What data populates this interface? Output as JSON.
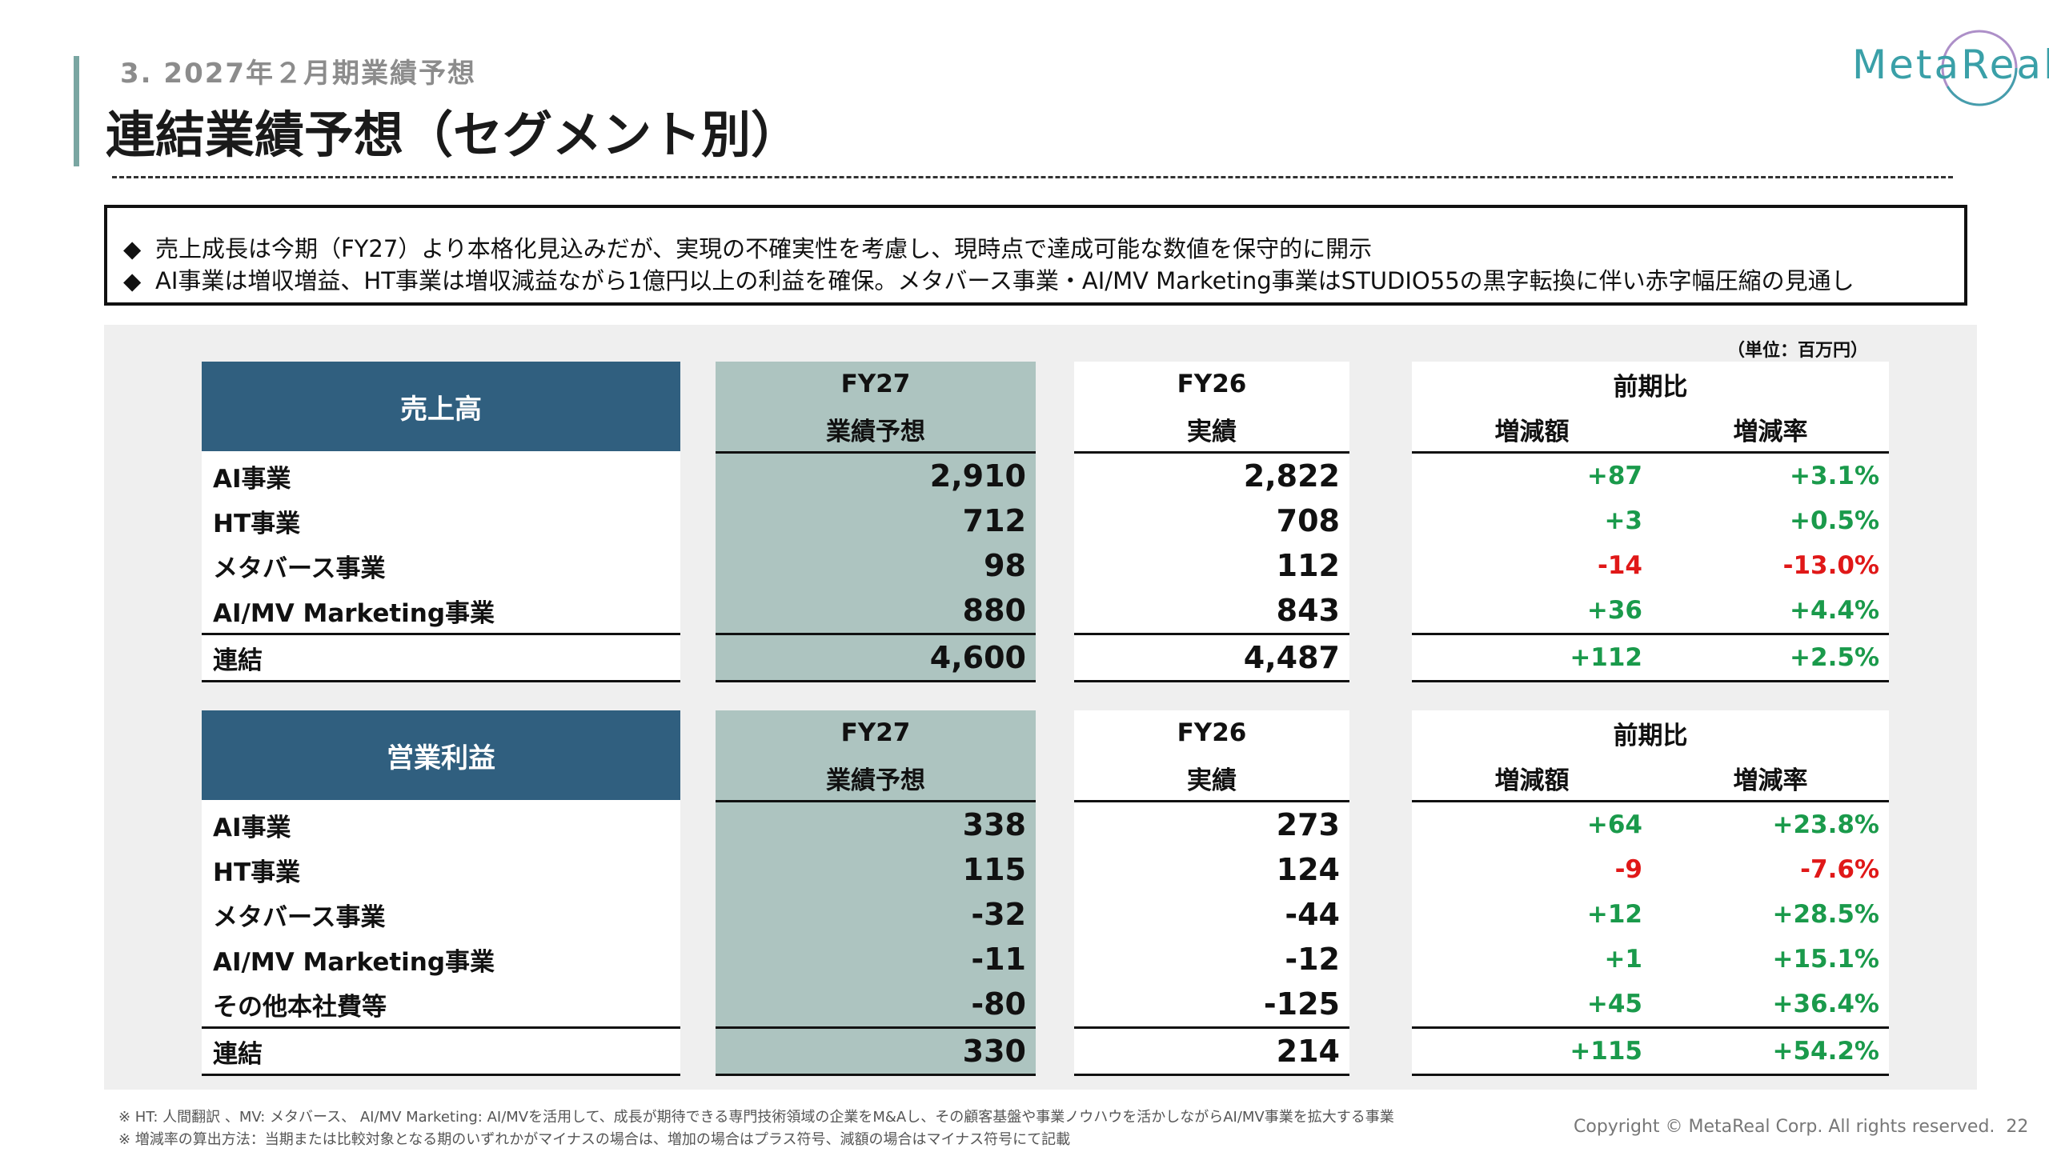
{
  "header": {
    "subtitle": "3. 2027年２月期業績予想",
    "title": "連結業績予想（セグメント別）",
    "logo_text": "MetaReal"
  },
  "summary": {
    "bullet_icon": "diamond-bullet",
    "lines": [
      "売上成長は今期（FY27）より本格化見込みだが、実現の不確実性を考慮し、現時点で達成可能な数値を保守的に開示",
      "AI事業は増収増益、HT事業は増収減益ながら1億円以上の利益を確保。メタバース事業・AI/MV Marketing事業はSTUDIO55の黒字転換に伴い赤字幅圧縮の見通し"
    ],
    "bullet": "◆"
  },
  "unit": "（単位：百万円）",
  "columns": {
    "fy27": "FY27",
    "fy27_sub": "業績予想",
    "fy26": "FY26",
    "fy26_sub": "実績",
    "compare": "前期比",
    "diff": "増減額",
    "rate": "増減率"
  },
  "sales": {
    "label": "売上高",
    "rows": [
      {
        "name": "AI事業",
        "fy27": "2,910",
        "fy26": "2,822",
        "diff": "+87",
        "rate": "+3.1%"
      },
      {
        "name": "HT事業",
        "fy27": "712",
        "fy26": "708",
        "diff": "+3",
        "rate": "+0.5%"
      },
      {
        "name": "メタバース事業",
        "fy27": "98",
        "fy26": "112",
        "diff": "-14",
        "rate": "-13.0%"
      },
      {
        "name": "AI/MV Marketing事業",
        "fy27": "880",
        "fy26": "843",
        "diff": "+36",
        "rate": "+4.4%"
      },
      {
        "name": "連結",
        "fy27": "4,600",
        "fy26": "4,487",
        "diff": "+112",
        "rate": "+2.5%"
      }
    ]
  },
  "profit": {
    "label": "営業利益",
    "rows": [
      {
        "name": "AI事業",
        "fy27": "338",
        "fy26": "273",
        "diff": "+64",
        "rate": "+23.8%"
      },
      {
        "name": "HT事業",
        "fy27": "115",
        "fy26": "124",
        "diff": "-9",
        "rate": "-7.6%"
      },
      {
        "name": "メタバース事業",
        "fy27": "-32",
        "fy26": "-44",
        "diff": "+12",
        "rate": "+28.5%"
      },
      {
        "name": "AI/MV Marketing事業",
        "fy27": "-11",
        "fy26": "-12",
        "diff": "+1",
        "rate": "+15.1%"
      },
      {
        "name": "その他本社費等",
        "fy27": "-80",
        "fy26": "-125",
        "diff": "+45",
        "rate": "+36.4%"
      },
      {
        "name": "連結",
        "fy27": "330",
        "fy26": "214",
        "diff": "+115",
        "rate": "+54.2%"
      }
    ]
  },
  "colors": {
    "header_blue": "#305f7f",
    "fy27_column": "#adc4c0",
    "positive": "#1a9a4b",
    "negative": "#e01818",
    "accent": "#7aa6a2"
  },
  "footnotes": [
    "※ HT: 人間翻訳 、MV: メタバース、 AI/MV Marketing: AI/MVを活用して、成長が期待できる専門技術領域の企業をM&Aし、その顧客基盤や事業ノウハウを活かしながらAI/MV事業を拡大する事業",
    "※ 増減率の算出方法：当期または比較対象となる期のいずれかがマイナスの場合は、増加の場合はプラス符号、減額の場合はマイナス符号にて記載"
  ],
  "copyright": "Copyright © MetaReal Corp. All rights reserved.",
  "page_number": "22"
}
